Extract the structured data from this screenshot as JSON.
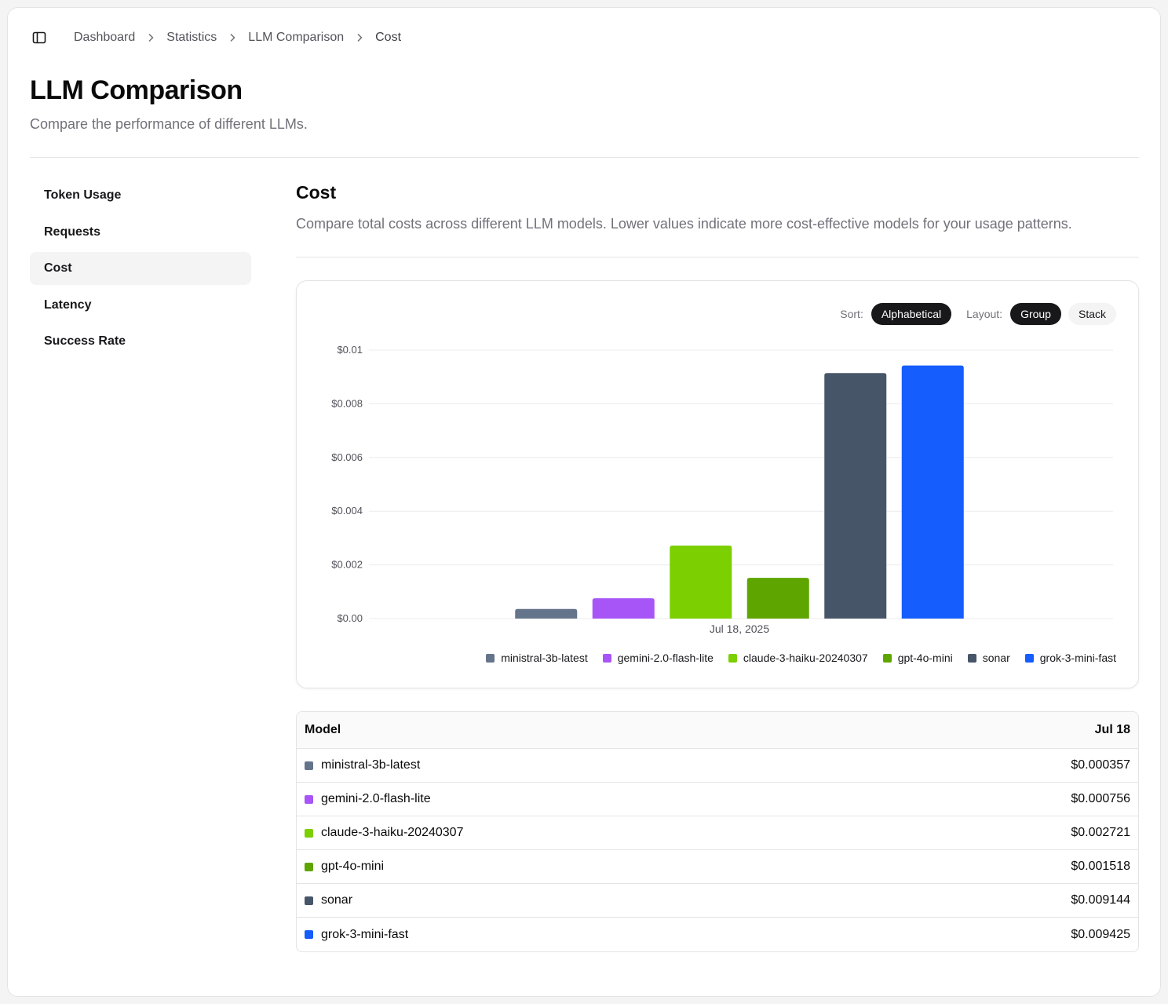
{
  "breadcrumb": [
    "Dashboard",
    "Statistics",
    "LLM Comparison",
    "Cost"
  ],
  "header": {
    "title": "LLM Comparison",
    "subtitle": "Compare the performance of different LLMs."
  },
  "nav": {
    "items": [
      {
        "label": "Token Usage",
        "active": false
      },
      {
        "label": "Requests",
        "active": false
      },
      {
        "label": "Cost",
        "active": true
      },
      {
        "label": "Latency",
        "active": false
      },
      {
        "label": "Success Rate",
        "active": false
      }
    ]
  },
  "section": {
    "title": "Cost",
    "description": "Compare total costs across different LLM models. Lower values indicate more cost-effective models for your usage patterns."
  },
  "controls": {
    "sort_label": "Sort:",
    "sort_value": "Alphabetical",
    "layout_label": "Layout:",
    "layout_options": [
      "Group",
      "Stack"
    ],
    "layout_selected": "Group"
  },
  "chart_data": {
    "type": "bar",
    "categories": [
      "Jul 18, 2025"
    ],
    "series": [
      {
        "name": "ministral-3b-latest",
        "color": "#64748b",
        "values": [
          0.000357
        ]
      },
      {
        "name": "gemini-2.0-flash-lite",
        "color": "#a855f7",
        "values": [
          0.000756
        ]
      },
      {
        "name": "claude-3-haiku-20240307",
        "color": "#7ccf00",
        "values": [
          0.002721
        ]
      },
      {
        "name": "gpt-4o-mini",
        "color": "#5ea500",
        "values": [
          0.001518
        ]
      },
      {
        "name": "sonar",
        "color": "#475569",
        "values": [
          0.009144
        ]
      },
      {
        "name": "grok-3-mini-fast",
        "color": "#155dfc",
        "values": [
          0.009425
        ]
      }
    ],
    "yticks": [
      "$0.00",
      "$0.002",
      "$0.004",
      "$0.006",
      "$0.008",
      "$0.01"
    ],
    "ylim": [
      0,
      0.01
    ],
    "grid": true,
    "legend": "bottom-right"
  },
  "table": {
    "headers": [
      "Model",
      "Jul 18"
    ],
    "rows": [
      {
        "model": "ministral-3b-latest",
        "color": "#64748b",
        "value": "$0.000357"
      },
      {
        "model": "gemini-2.0-flash-lite",
        "color": "#a855f7",
        "value": "$0.000756"
      },
      {
        "model": "claude-3-haiku-20240307",
        "color": "#7ccf00",
        "value": "$0.002721"
      },
      {
        "model": "gpt-4o-mini",
        "color": "#5ea500",
        "value": "$0.001518"
      },
      {
        "model": "sonar",
        "color": "#475569",
        "value": "$0.009144"
      },
      {
        "model": "grok-3-mini-fast",
        "color": "#155dfc",
        "value": "$0.009425"
      }
    ]
  },
  "icons": {
    "sidebar_toggle": "sidebar-panel-icon",
    "breadcrumb_separator": "chevron-right-icon"
  }
}
